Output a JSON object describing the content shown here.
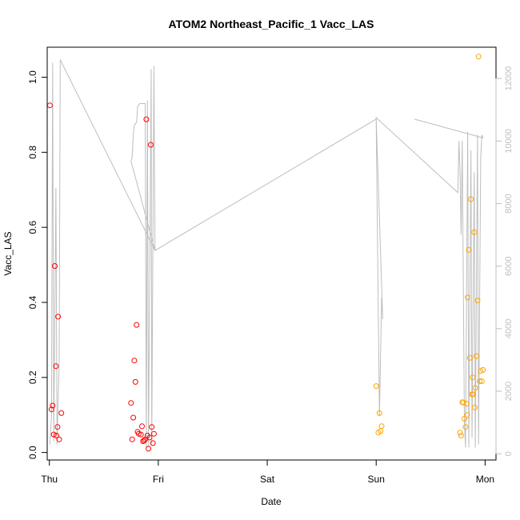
{
  "chart_data": {
    "type": "scatter",
    "title": "ATOM2 Northeast_Pacific_1 Vacc_LAS",
    "xlabel": "Date",
    "ylabel": "Vacc_LAS",
    "x_ticks": [
      "Thu",
      "Fri",
      "Sat",
      "Sun",
      "Mon"
    ],
    "xlim": [
      -0.02,
      4.1
    ],
    "ylim": [
      -0.02,
      1.08
    ],
    "y_ticks": [
      0.0,
      0.2,
      0.4,
      0.6,
      0.8,
      1.0
    ],
    "y_ticks_labels": [
      "0.0",
      "0.2",
      "0.4",
      "0.6",
      "0.8",
      "1.0"
    ],
    "y2lim": [
      -200,
      13000
    ],
    "y2_ticks": [
      0,
      2000,
      4000,
      6000,
      8000,
      10000,
      12000
    ],
    "y2_ticks_labels": [
      "0",
      "2000",
      "4000",
      "6000",
      "8000",
      "10000",
      "12000"
    ],
    "grid": false,
    "legend": "none",
    "colors": {
      "series_a": "#ff0000",
      "series_b": "#ffa500",
      "secondary_line": "#bebebe",
      "axes": "#000000"
    },
    "series": [
      {
        "color": "#ff0000",
        "points": [
          [
            0.005,
            0.925
          ],
          [
            0.02,
            0.115
          ],
          [
            0.03,
            0.125
          ],
          [
            0.04,
            0.048
          ],
          [
            0.05,
            0.497
          ],
          [
            0.06,
            0.23
          ],
          [
            0.065,
            0.045
          ],
          [
            0.075,
            0.068
          ],
          [
            0.08,
            0.362
          ],
          [
            0.09,
            0.035
          ],
          [
            0.11,
            0.105
          ],
          [
            0.75,
            0.132
          ],
          [
            0.76,
            0.035
          ],
          [
            0.77,
            0.093
          ],
          [
            0.78,
            0.245
          ],
          [
            0.79,
            0.188
          ],
          [
            0.8,
            0.34
          ],
          [
            0.81,
            0.055
          ],
          [
            0.82,
            0.05
          ],
          [
            0.84,
            0.048
          ],
          [
            0.85,
            0.07
          ],
          [
            0.86,
            0.03
          ],
          [
            0.87,
            0.032
          ],
          [
            0.88,
            0.035
          ],
          [
            0.89,
            0.888
          ],
          [
            0.9,
            0.045
          ],
          [
            0.91,
            0.01
          ],
          [
            0.92,
            0.04
          ],
          [
            0.93,
            0.82
          ],
          [
            0.94,
            0.068
          ],
          [
            0.95,
            0.025
          ],
          [
            0.96,
            0.05
          ]
        ]
      },
      {
        "color": "#ffa500",
        "points": [
          [
            3.0,
            0.177
          ],
          [
            3.02,
            0.053
          ],
          [
            3.03,
            0.105
          ],
          [
            3.04,
            0.057
          ],
          [
            3.05,
            0.07
          ],
          [
            3.77,
            0.053
          ],
          [
            3.78,
            0.045
          ],
          [
            3.79,
            0.134
          ],
          [
            3.8,
            0.133
          ],
          [
            3.81,
            0.09
          ],
          [
            3.82,
            0.068
          ],
          [
            3.83,
            0.13
          ],
          [
            3.835,
            0.1
          ],
          [
            3.84,
            0.413
          ],
          [
            3.85,
            0.54
          ],
          [
            3.86,
            0.252
          ],
          [
            3.87,
            0.675
          ],
          [
            3.88,
            0.155
          ],
          [
            3.885,
            0.2
          ],
          [
            3.89,
            0.155
          ],
          [
            3.9,
            0.587
          ],
          [
            3.905,
            0.12
          ],
          [
            3.91,
            0.172
          ],
          [
            3.92,
            0.257
          ],
          [
            3.93,
            0.405
          ],
          [
            3.94,
            1.055
          ],
          [
            3.95,
            0.19
          ],
          [
            3.96,
            0.217
          ],
          [
            3.97,
            0.19
          ],
          [
            3.98,
            0.22
          ]
        ]
      }
    ],
    "secondary_line": {
      "color": "#bebebe",
      "axis": "right",
      "points": [
        [
          0.005,
          300
        ],
        [
          0.02,
          1200
        ],
        [
          0.03,
          12500
        ],
        [
          0.04,
          400
        ],
        [
          0.06,
          8500
        ],
        [
          0.07,
          300
        ],
        [
          0.09,
          3000
        ],
        [
          0.1,
          12600
        ],
        [
          0.97,
          6500
        ],
        [
          0.75,
          9350
        ],
        [
          0.76,
          9500
        ],
        [
          0.77,
          10200
        ],
        [
          0.78,
          10500
        ],
        [
          0.8,
          10600
        ],
        [
          0.81,
          11100
        ],
        [
          0.83,
          11200
        ],
        [
          0.88,
          11200
        ],
        [
          0.89,
          200
        ],
        [
          0.9,
          11300
        ],
        [
          0.91,
          200
        ],
        [
          0.935,
          12300
        ],
        [
          0.94,
          300
        ],
        [
          0.96,
          12400
        ],
        [
          0.97,
          6500
        ],
        [
          3.0,
          10700
        ],
        [
          3.03,
          1200
        ],
        [
          3.05,
          5000
        ],
        [
          3.06,
          4300
        ],
        [
          3.0,
          10750
        ],
        [
          3.75,
          8350
        ],
        [
          3.76,
          10000
        ],
        [
          3.77,
          9000
        ],
        [
          3.78,
          7000
        ],
        [
          3.79,
          10000
        ],
        [
          3.81,
          1000
        ],
        [
          3.82,
          200
        ],
        [
          3.84,
          10300
        ],
        [
          3.85,
          200
        ],
        [
          3.87,
          9700
        ],
        [
          3.88,
          500
        ],
        [
          3.9,
          9000
        ],
        [
          3.91,
          200
        ],
        [
          3.93,
          10200
        ],
        [
          3.94,
          300
        ],
        [
          3.96,
          9500
        ],
        [
          3.97,
          10200
        ],
        [
          3.98,
          10100
        ],
        [
          3.35,
          10700
        ]
      ]
    }
  }
}
